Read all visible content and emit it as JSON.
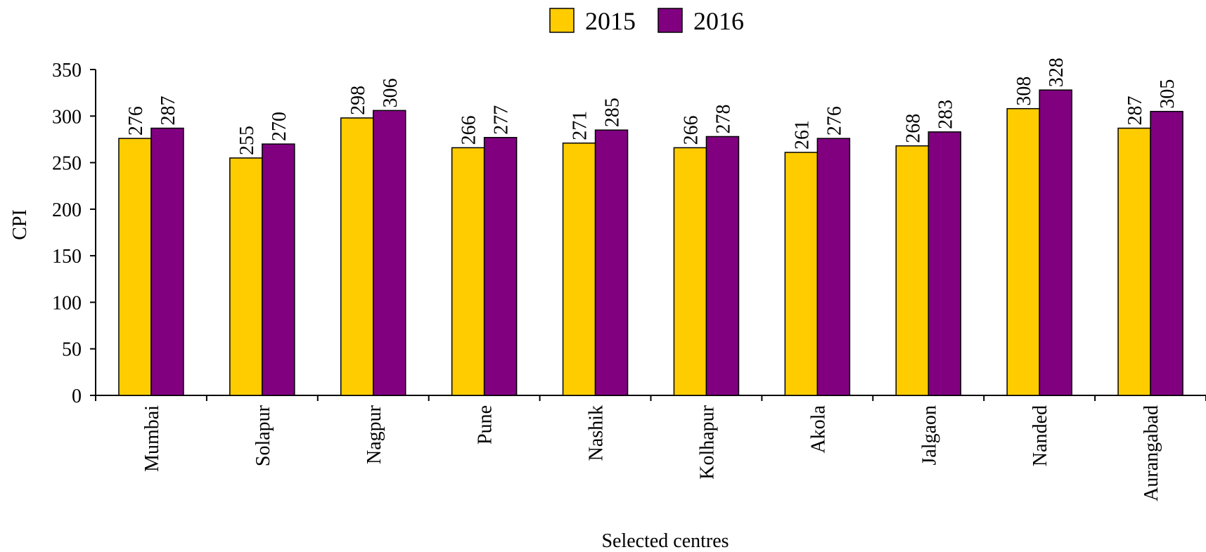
{
  "chart_data": {
    "type": "bar",
    "title": "",
    "xlabel": "Selected centres",
    "ylabel": "CPI",
    "ylim": [
      0,
      350
    ],
    "yticks": [
      0,
      50,
      100,
      150,
      200,
      250,
      300,
      350
    ],
    "grid": false,
    "legend_position": "top-center",
    "categories": [
      "Mumbai",
      "Solapur",
      "Nagpur",
      "Pune",
      "Nashik",
      "Kolhapur",
      "Akola",
      "Jalgaon",
      "Nanded",
      "Aurangabad"
    ],
    "series": [
      {
        "name": "2015",
        "color": "#FFCC00",
        "values": [
          276,
          255,
          298,
          266,
          271,
          266,
          261,
          268,
          308,
          287
        ]
      },
      {
        "name": "2016",
        "color": "#800080",
        "values": [
          287,
          270,
          306,
          277,
          285,
          278,
          276,
          283,
          328,
          305
        ]
      }
    ]
  }
}
